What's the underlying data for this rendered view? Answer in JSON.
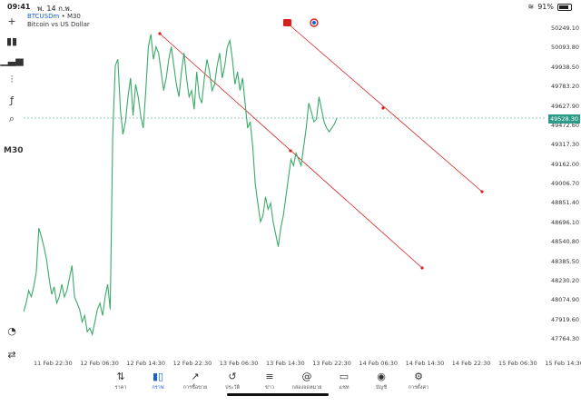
{
  "status": {
    "time": "09:41",
    "date": "พ. 14 ก.พ.",
    "battery": "91%"
  },
  "chart": {
    "symbol": "BTCUSDm",
    "timeframe": "M30",
    "description": "Bitcoin vs US Dollar",
    "timeframe_label": "M30",
    "current_price": "49528.30",
    "price_labels": [
      "50249.10",
      "50093.80",
      "49938.50",
      "49783.20",
      "49627.90",
      "49472.60",
      "49317.30",
      "49162.00",
      "49006.70",
      "48851.40",
      "48696.10",
      "48540.80",
      "48385.50",
      "48230.20",
      "48074.90",
      "47919.60",
      "47764.30"
    ],
    "time_labels": [
      "11 Feb 22:30",
      "12 Feb 06:30",
      "12 Feb 14:30",
      "12 Feb 22:30",
      "13 Feb 06:30",
      "13 Feb 14:30",
      "13 Feb 22:30",
      "14 Feb 06:30",
      "14 Feb 14:30",
      "14 Feb 22:30",
      "15 Feb 06:30",
      "15 Feb 14:30"
    ],
    "colors": {
      "line": "#3aaa6a",
      "trendline": "#d42020",
      "current": "#2e9b8a"
    }
  },
  "chart_data": {
    "type": "line",
    "series": [
      {
        "values": [
          47980,
          48050,
          48150,
          48100,
          48180,
          48300,
          48650,
          48580,
          48500,
          48400,
          48250,
          48120,
          48180,
          48050,
          48100,
          48200,
          48100,
          48150,
          48250,
          48350,
          48100,
          48050,
          48000,
          47900,
          47950,
          47820,
          47850,
          47800,
          47900,
          48000,
          48050,
          47950,
          48100,
          48200,
          48000,
          49400,
          49950,
          50000,
          49600,
          49400,
          49500,
          49700,
          49850,
          49550,
          49800,
          49700,
          49550,
          49450,
          49750,
          50100,
          50200,
          50000,
          50100,
          50050,
          49900,
          49750,
          49850,
          50000,
          50100,
          49950,
          49800,
          49700,
          49900,
          50050,
          49850,
          49700,
          49750,
          49600,
          49900,
          49700,
          49650,
          49850,
          50000,
          49900,
          49750,
          49800,
          49950,
          50050,
          49850,
          49950,
          50100,
          50150,
          50000,
          49800,
          49900,
          49750,
          49850,
          49650,
          49450,
          49500,
          49300,
          49000,
          48850,
          48700,
          48750,
          48900,
          48800,
          48850,
          48700,
          48600,
          48500,
          48650,
          48750,
          48900,
          49050,
          49200,
          49150,
          49250,
          49200,
          49150,
          49300,
          49450,
          49650,
          49580,
          49500,
          49520,
          49700,
          49600,
          49500,
          49450,
          49420,
          49450,
          49480,
          49528
        ]
      }
    ]
  },
  "tabs": [
    {
      "label": "ราคา",
      "icon": "arrows-updown-icon",
      "glyph": "⇅"
    },
    {
      "label": "กราฟ",
      "icon": "candlestick-icon",
      "glyph": "▮▯",
      "active": true
    },
    {
      "label": "การซื้อขาย",
      "icon": "trade-chart-icon",
      "glyph": "↗"
    },
    {
      "label": "ประวัติ",
      "icon": "history-icon",
      "glyph": "↺"
    },
    {
      "label": "ข่าว",
      "icon": "news-icon",
      "glyph": "≡"
    },
    {
      "label": "กล่องจดหมาย",
      "icon": "mailbox-icon",
      "glyph": "@"
    },
    {
      "label": "แชท",
      "icon": "chat-icon",
      "glyph": "▭"
    },
    {
      "label": "บัญชี",
      "icon": "account-icon",
      "glyph": "◉"
    },
    {
      "label": "การตั้งค่า",
      "icon": "settings-icon",
      "glyph": "⚙"
    }
  ]
}
